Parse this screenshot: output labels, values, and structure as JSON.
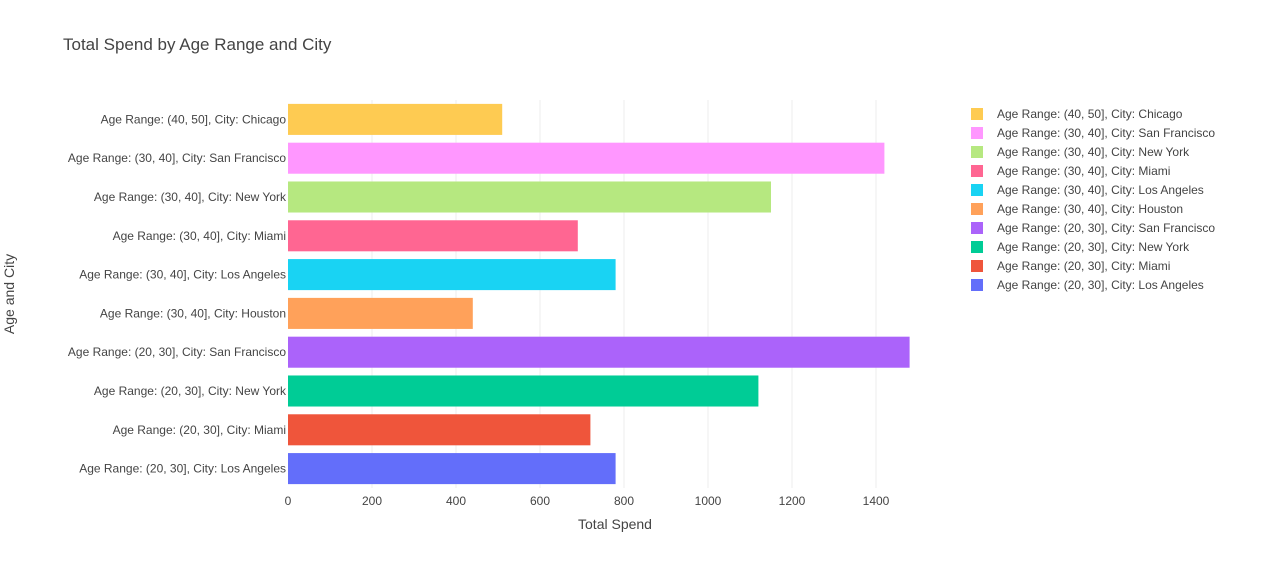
{
  "chart_data": {
    "type": "bar",
    "orientation": "horizontal",
    "title": "Total Spend by Age Range and City",
    "xlabel": "Total Spend",
    "ylabel": "Age and City",
    "xlim": [
      0,
      1560
    ],
    "xticks": [
      0,
      200,
      400,
      600,
      800,
      1000,
      1200,
      1400
    ],
    "grid": true,
    "legend_position": "right",
    "series": [
      {
        "name": "Age Range: (20, 30], City: Los Angeles",
        "category": "Age Range: (20, 30], City: Los Angeles",
        "value": 780,
        "color": "#636efa"
      },
      {
        "name": "Age Range: (20, 30], City: Miami",
        "category": "Age Range: (20, 30], City: Miami",
        "value": 720,
        "color": "#EF553B"
      },
      {
        "name": "Age Range: (20, 30], City: New York",
        "category": "Age Range: (20, 30], City: New York",
        "value": 1120,
        "color": "#00cc96"
      },
      {
        "name": "Age Range: (20, 30], City: San Francisco",
        "category": "Age Range: (20, 30], City: San Francisco",
        "value": 1480,
        "color": "#ab63fa"
      },
      {
        "name": "Age Range: (30, 40], City: Houston",
        "category": "Age Range: (30, 40], City: Houston",
        "value": 440,
        "color": "#FFA15A"
      },
      {
        "name": "Age Range: (30, 40], City: Los Angeles",
        "category": "Age Range: (30, 40], City: Los Angeles",
        "value": 780,
        "color": "#19d3f3"
      },
      {
        "name": "Age Range: (30, 40], City: Miami",
        "category": "Age Range: (30, 40], City: Miami",
        "value": 690,
        "color": "#FF6692"
      },
      {
        "name": "Age Range: (30, 40], City: New York",
        "category": "Age Range: (30, 40], City: New York",
        "value": 1150,
        "color": "#B6E880"
      },
      {
        "name": "Age Range: (30, 40], City: San Francisco",
        "category": "Age Range: (30, 40], City: San Francisco",
        "value": 1420,
        "color": "#FF97FF"
      },
      {
        "name": "Age Range: (40, 50], City: Chicago",
        "category": "Age Range: (40, 50], City: Chicago",
        "value": 510,
        "color": "#FECB52"
      }
    ]
  }
}
